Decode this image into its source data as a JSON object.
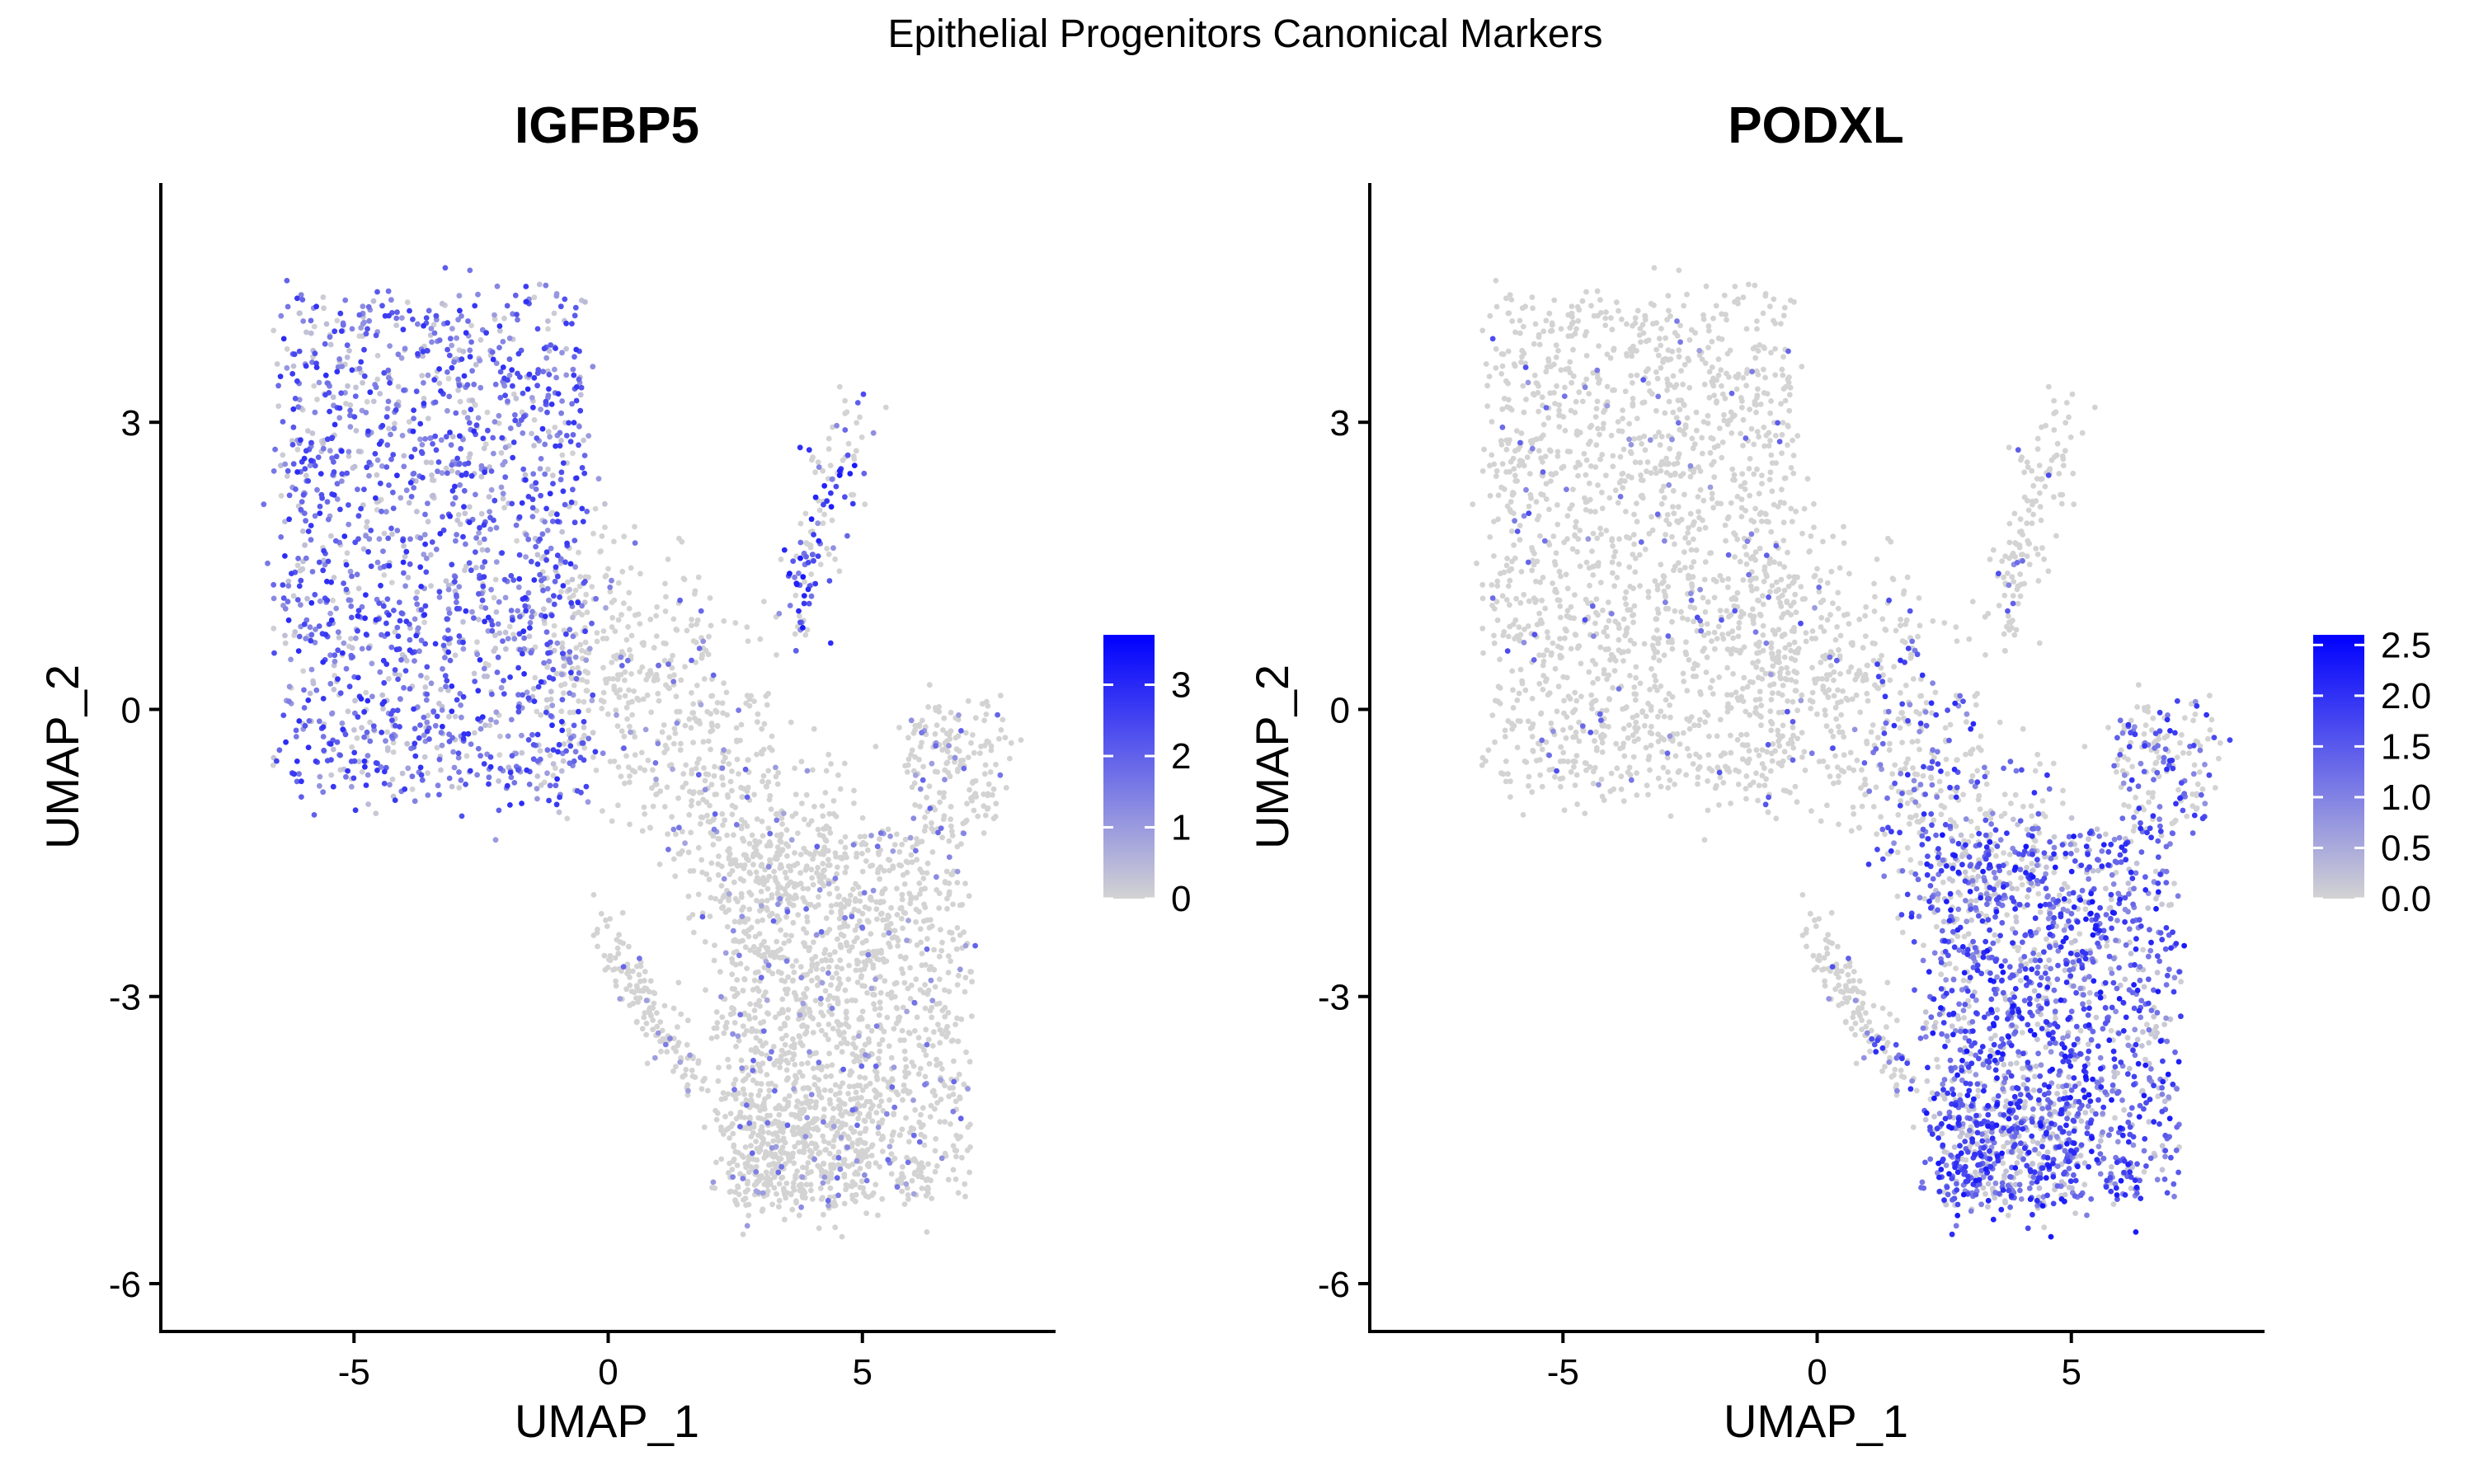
{
  "figure": {
    "title": "Epithelial Progenitors Canonical Markers"
  },
  "colors": {
    "low": "#d3d3d3",
    "high": "#0000ff",
    "axis": "#000000",
    "background": "#ffffff"
  },
  "chart_data": [
    {
      "type": "scatter",
      "title": "IGFBP5",
      "xlabel": "UMAP_1",
      "ylabel": "UMAP_2",
      "xlim": [
        -8.8,
        8.8
      ],
      "ylim": [
        -6.5,
        5.5
      ],
      "xticks": [
        -5,
        0,
        5
      ],
      "xtick_labels": [
        "-5",
        "0",
        "5"
      ],
      "yticks": [
        3,
        0,
        -3,
        -6
      ],
      "ytick_labels": [
        "3",
        "0",
        "-3",
        "-6"
      ],
      "grid": false,
      "legend": {
        "position": "right",
        "type": "colorbar",
        "range": [
          0,
          3.7
        ],
        "ticks": [
          0,
          1,
          2,
          3
        ],
        "tick_labels": [
          "0",
          "1",
          "2",
          "3"
        ]
      },
      "expression_profile": {
        "high_region": "upper-left cluster (UMAP_1 -7 to 0.5, UMAP_2 -1 to 4.4)",
        "notes": "scattered moderate expression in right-upper arm around UMAP_1 4-5, UMAP_2 1-3"
      }
    },
    {
      "type": "scatter",
      "title": "PODXL",
      "xlabel": "UMAP_1",
      "ylabel": "UMAP_2",
      "xlim": [
        -8.8,
        8.8
      ],
      "ylim": [
        -6.5,
        5.5
      ],
      "xticks": [
        -5,
        0,
        5
      ],
      "xtick_labels": [
        "-5",
        "0",
        "5"
      ],
      "yticks": [
        3,
        0,
        -3,
        -6
      ],
      "ytick_labels": [
        "3",
        "0",
        "-3",
        "-6"
      ],
      "grid": false,
      "legend": {
        "position": "right",
        "type": "colorbar",
        "range": [
          0,
          2.6
        ],
        "ticks": [
          0,
          0.5,
          1.0,
          1.5,
          2.0,
          2.5
        ],
        "tick_labels": [
          "0.0",
          "0.5",
          "1.0",
          "1.5",
          "2.0",
          "2.5"
        ]
      },
      "expression_profile": {
        "high_region": "lower-right lobe (UMAP_1 2 to 7, UMAP_2 -5 to -1)",
        "notes": "sparse expression in bridge region around UMAP_1 1-4, UMAP_2 -2 to 1"
      }
    }
  ]
}
